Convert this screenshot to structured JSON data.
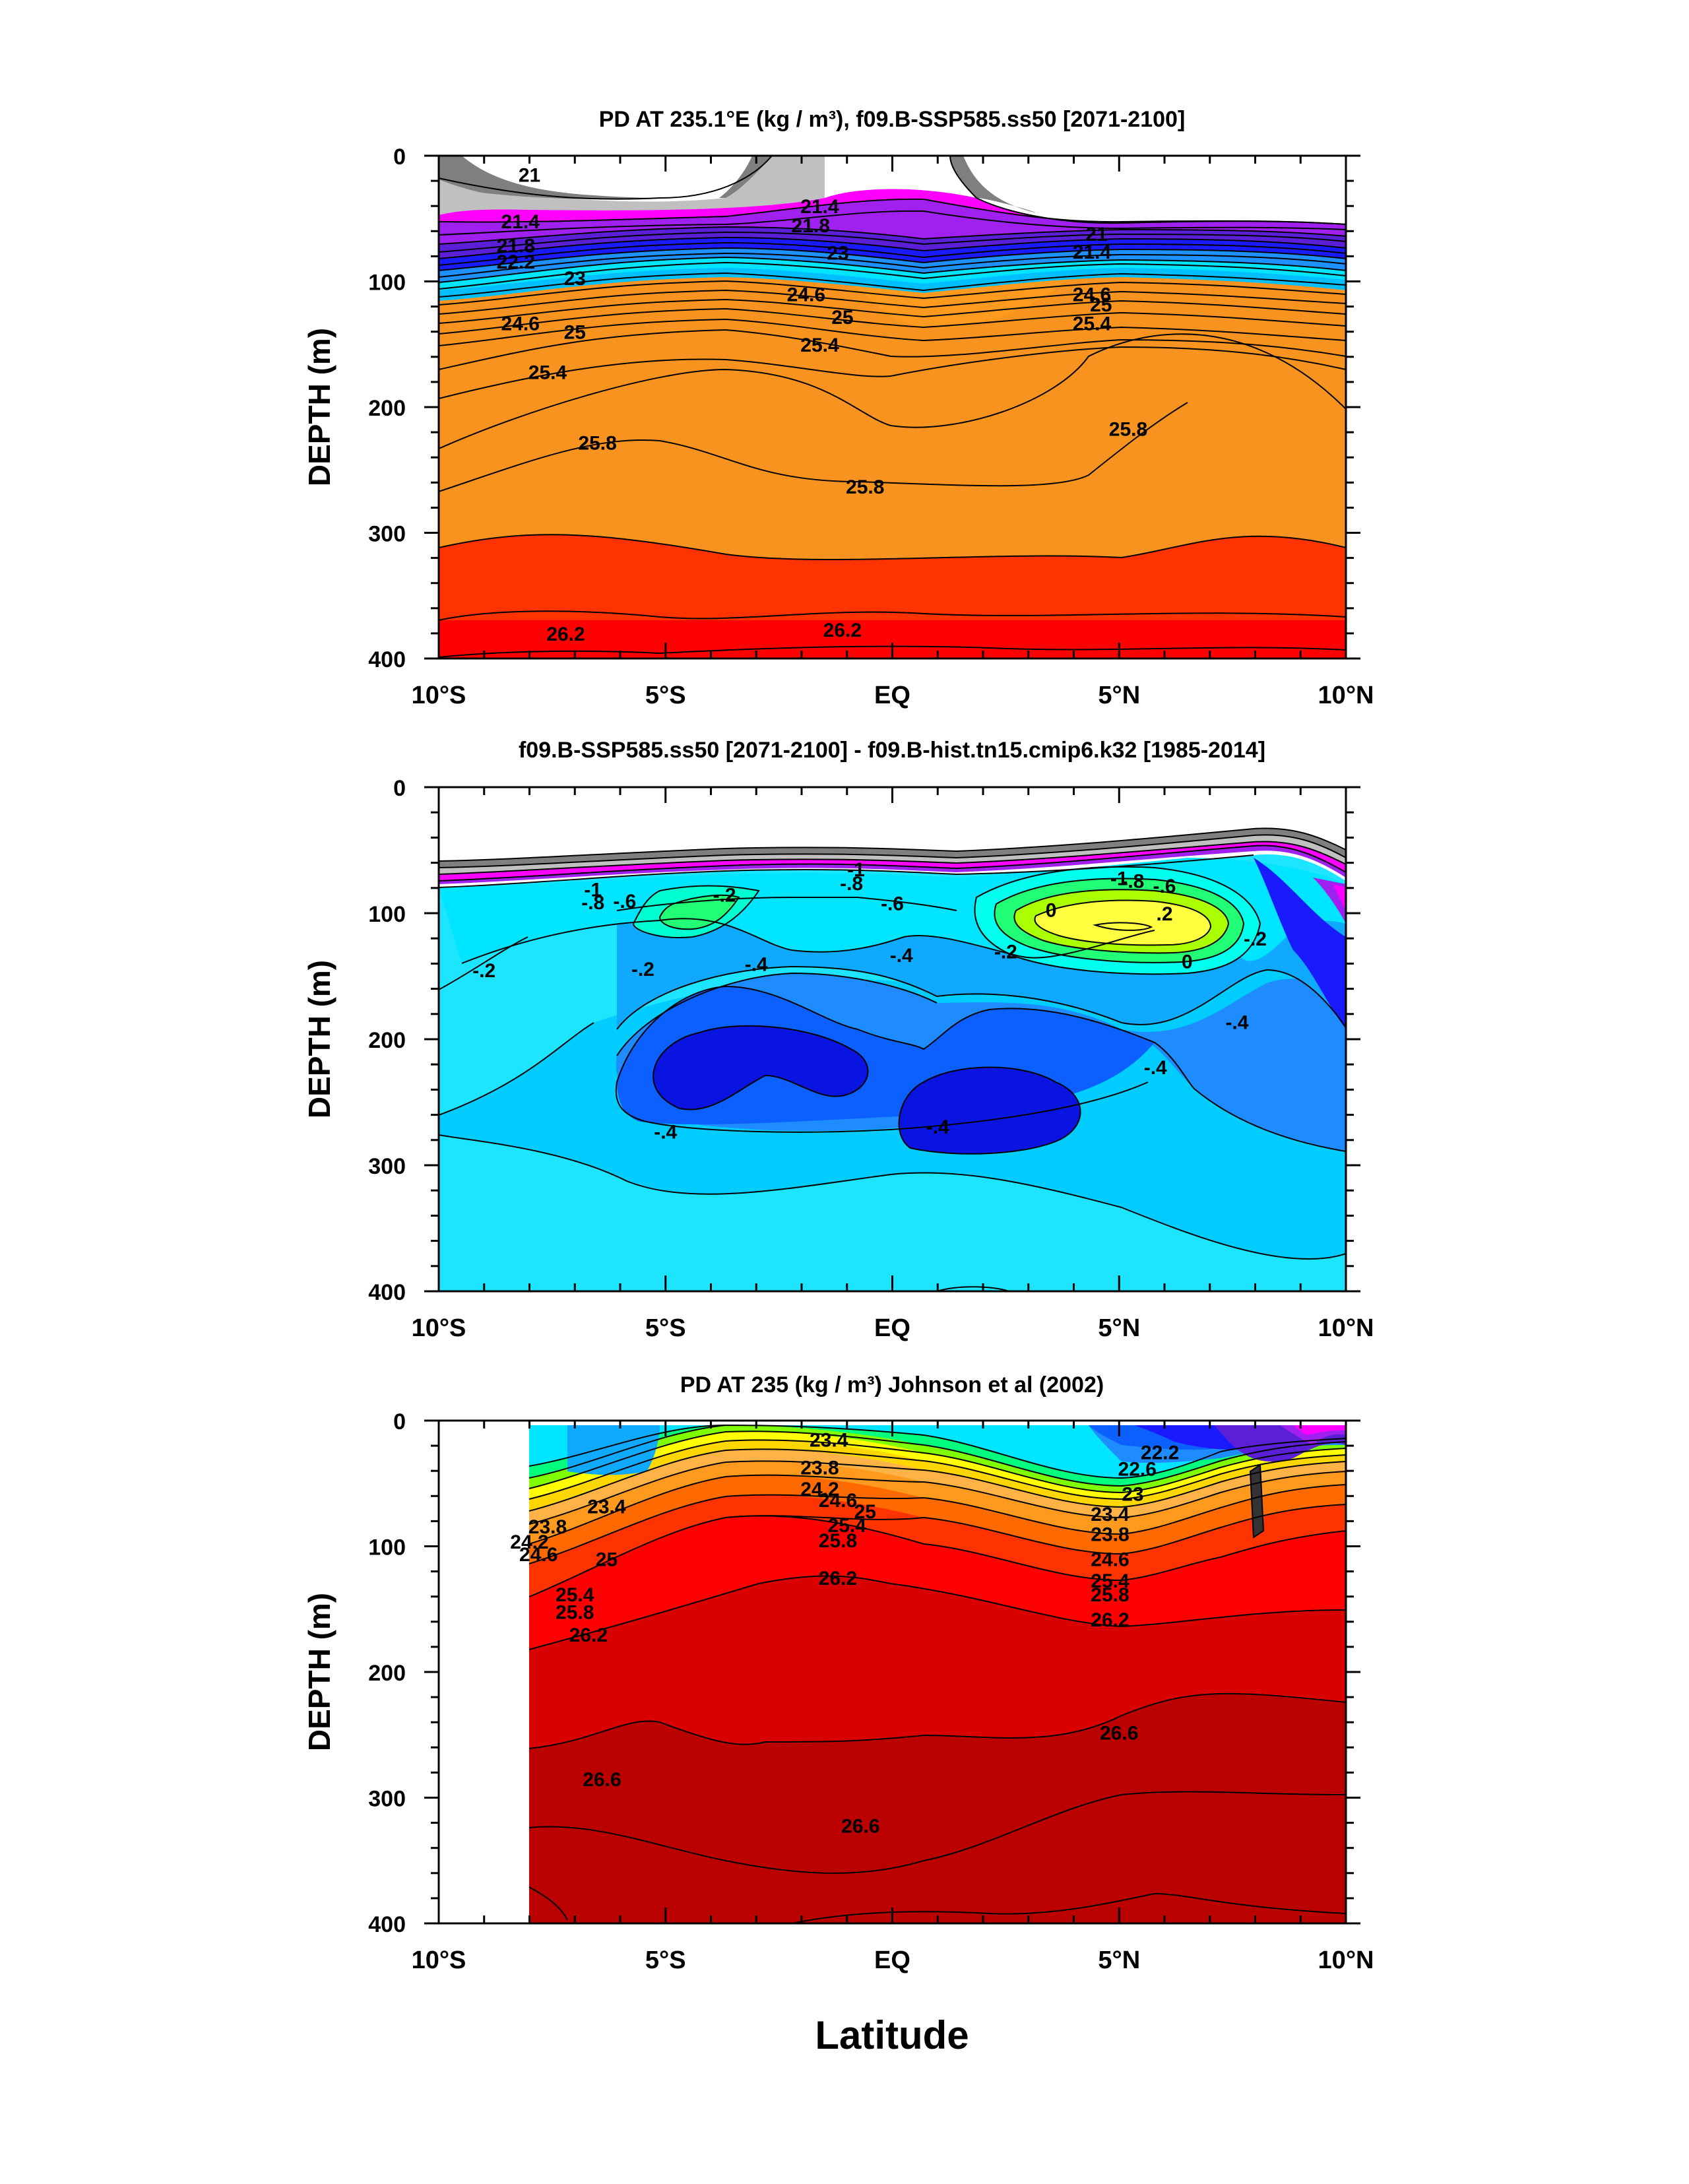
{
  "figure": {
    "xlabel": "Latitude"
  },
  "colors": {
    "density_scale": [
      "#7f7f7f",
      "#c0c0c0",
      "#ff00ff",
      "#a020f0",
      "#5a1fd6",
      "#1a1aff",
      "#0b60ff",
      "#1e90ff",
      "#00bfff",
      "#00e5ff",
      "#00ffd0",
      "#00ff7f",
      "#7fff00",
      "#ffff00",
      "#ffd700",
      "#ffb347",
      "#ff9a1f",
      "#f7931e",
      "#ff6a00",
      "#ff3300",
      "#ff0000",
      "#cc0000"
    ],
    "diff_scale": [
      "#7f7f7f",
      "#c0c0c0",
      "#ff00ff",
      "#a020f0",
      "#1a1aff",
      "#1e6fff",
      "#00aaff",
      "#00cfff",
      "#00e5ff",
      "#00ffee",
      "#22ff77",
      "#aaff00",
      "#ffff40"
    ]
  },
  "chart_data": [
    {
      "type": "contour",
      "title": "PD AT 235.1°E (kg / m³), f09.B-SSP585.ss50 [2071-2100]",
      "xlabel": "",
      "ylabel": "DEPTH (m)",
      "xlim": [
        -10,
        10
      ],
      "ylim": [
        400,
        0
      ],
      "xticks": [
        -10,
        -5,
        0,
        5,
        10
      ],
      "xtick_labels": [
        "10°S",
        "5°S",
        "EQ",
        "5°N",
        "10°N"
      ],
      "yticks": [
        0,
        100,
        200,
        300,
        400
      ],
      "ytick_labels": [
        "0",
        "100",
        "200",
        "300",
        "400"
      ],
      "contour_labels": [
        {
          "text": "21",
          "x": -8,
          "y": 15
        },
        {
          "text": "21.4",
          "x": -8.2,
          "y": 52
        },
        {
          "text": "21.8",
          "x": -8.3,
          "y": 71
        },
        {
          "text": "22.2",
          "x": -8.3,
          "y": 84
        },
        {
          "text": "23",
          "x": -7,
          "y": 97
        },
        {
          "text": "24.6",
          "x": -8.2,
          "y": 133
        },
        {
          "text": "25",
          "x": -7,
          "y": 140
        },
        {
          "text": "25.4",
          "x": -7.6,
          "y": 172
        },
        {
          "text": "25.8",
          "x": -6.5,
          "y": 228
        },
        {
          "text": "26.2",
          "x": -7.2,
          "y": 380
        },
        {
          "text": "21.4",
          "x": -1.6,
          "y": 40
        },
        {
          "text": "21.8",
          "x": -1.8,
          "y": 55
        },
        {
          "text": "23",
          "x": -1.2,
          "y": 77
        },
        {
          "text": "24.6",
          "x": -1.9,
          "y": 110
        },
        {
          "text": "25",
          "x": -1.1,
          "y": 128
        },
        {
          "text": "25.4",
          "x": -1.6,
          "y": 150
        },
        {
          "text": "25.8",
          "x": -0.6,
          "y": 263
        },
        {
          "text": "26.2",
          "x": -1.1,
          "y": 377
        },
        {
          "text": "21",
          "x": 4.5,
          "y": 62
        },
        {
          "text": "21.4",
          "x": 4.4,
          "y": 76
        },
        {
          "text": "24.6",
          "x": 4.4,
          "y": 110
        },
        {
          "text": "25",
          "x": 4.6,
          "y": 118
        },
        {
          "text": "25.4",
          "x": 4.4,
          "y": 133
        },
        {
          "text": "25.8",
          "x": 5.2,
          "y": 217
        }
      ]
    },
    {
      "type": "contour",
      "title": "f09.B-SSP585.ss50 [2071-2100] - f09.B-hist.tn15.cmip6.k32 [1985-2014]",
      "xlabel": "",
      "ylabel": "DEPTH (m)",
      "xlim": [
        -10,
        10
      ],
      "ylim": [
        400,
        0
      ],
      "xticks": [
        -10,
        -5,
        0,
        5,
        10
      ],
      "xtick_labels": [
        "10°S",
        "5°S",
        "EQ",
        "5°N",
        "10°N"
      ],
      "yticks": [
        0,
        100,
        200,
        300,
        400
      ],
      "ytick_labels": [
        "0",
        "100",
        "200",
        "300",
        "400"
      ],
      "contour_labels": [
        {
          "text": "-1",
          "x": -6.6,
          "y": 81
        },
        {
          "text": "-.8",
          "x": -6.6,
          "y": 91
        },
        {
          "text": "-.6",
          "x": -5.9,
          "y": 90
        },
        {
          "text": "-.2",
          "x": -3.7,
          "y": 85
        },
        {
          "text": "-1",
          "x": -0.8,
          "y": 65
        },
        {
          "text": "-.8",
          "x": -0.9,
          "y": 76
        },
        {
          "text": "-.6",
          "x": 0,
          "y": 92
        },
        {
          "text": "-1",
          "x": 5,
          "y": 72
        },
        {
          "text": "-.8",
          "x": 5.3,
          "y": 74
        },
        {
          "text": "-.6",
          "x": 6,
          "y": 78
        },
        {
          "text": "0",
          "x": 3.5,
          "y": 97
        },
        {
          "text": ".2",
          "x": 6,
          "y": 100
        },
        {
          "text": "-.2",
          "x": -9,
          "y": 145
        },
        {
          "text": "-.2",
          "x": -5.5,
          "y": 144
        },
        {
          "text": "-.4",
          "x": -3,
          "y": 140
        },
        {
          "text": "-.4",
          "x": 0.2,
          "y": 133
        },
        {
          "text": "-.2",
          "x": 2.5,
          "y": 130
        },
        {
          "text": "0",
          "x": 6.5,
          "y": 138
        },
        {
          "text": "-.2",
          "x": 8,
          "y": 120
        },
        {
          "text": "-.4",
          "x": 7.6,
          "y": 186
        },
        {
          "text": "-.4",
          "x": 5.8,
          "y": 222
        },
        {
          "text": "-.4",
          "x": -5,
          "y": 273
        },
        {
          "text": "-.4",
          "x": 1,
          "y": 269
        }
      ]
    },
    {
      "type": "contour",
      "title": "PD AT 235 (kg / m³) Johnson et al (2002)",
      "xlabel": "Latitude",
      "ylabel": "DEPTH (m)",
      "xlim": [
        -10,
        10
      ],
      "ylim": [
        400,
        0
      ],
      "xticks": [
        -10,
        -5,
        0,
        5,
        10
      ],
      "xtick_labels": [
        "10°S",
        "5°S",
        "EQ",
        "5°N",
        "10°N"
      ],
      "yticks": [
        0,
        100,
        200,
        300,
        400
      ],
      "ytick_labels": [
        "0",
        "100",
        "200",
        "300",
        "400"
      ],
      "data_start_lat": -8,
      "contour_labels": [
        {
          "text": "23.4",
          "x": -6.3,
          "y": 68
        },
        {
          "text": "23.8",
          "x": -7.6,
          "y": 84
        },
        {
          "text": "24.2",
          "x": -8,
          "y": 96
        },
        {
          "text": "24.6",
          "x": -7.8,
          "y": 106
        },
        {
          "text": "25",
          "x": -6.3,
          "y": 110
        },
        {
          "text": "25.4",
          "x": -7,
          "y": 138
        },
        {
          "text": "25.8",
          "x": -7,
          "y": 152
        },
        {
          "text": "26.2",
          "x": -6.7,
          "y": 170
        },
        {
          "text": "23.4",
          "x": -1.4,
          "y": 15
        },
        {
          "text": "23.8",
          "x": -1.6,
          "y": 37
        },
        {
          "text": "24.2",
          "x": -1.6,
          "y": 54
        },
        {
          "text": "24.6",
          "x": -1.2,
          "y": 63
        },
        {
          "text": "25",
          "x": -0.6,
          "y": 72
        },
        {
          "text": "25.4",
          "x": -1,
          "y": 83
        },
        {
          "text": "25.8",
          "x": -1.2,
          "y": 95
        },
        {
          "text": "26.2",
          "x": -1.2,
          "y": 125
        },
        {
          "text": "22.2",
          "x": 5.9,
          "y": 25
        },
        {
          "text": "22.6",
          "x": 5.4,
          "y": 38
        },
        {
          "text": "23",
          "x": 5.3,
          "y": 58
        },
        {
          "text": "23.4",
          "x": 4.8,
          "y": 74
        },
        {
          "text": "23.8",
          "x": 4.8,
          "y": 90
        },
        {
          "text": "24.6",
          "x": 4.8,
          "y": 110
        },
        {
          "text": "25.4",
          "x": 4.8,
          "y": 127
        },
        {
          "text": "25.8",
          "x": 4.8,
          "y": 138
        },
        {
          "text": "26.2",
          "x": 4.8,
          "y": 158
        },
        {
          "text": "26.6",
          "x": -6.4,
          "y": 285
        },
        {
          "text": "26.6",
          "x": -0.7,
          "y": 322
        },
        {
          "text": "26.6",
          "x": 5,
          "y": 248
        }
      ]
    }
  ]
}
